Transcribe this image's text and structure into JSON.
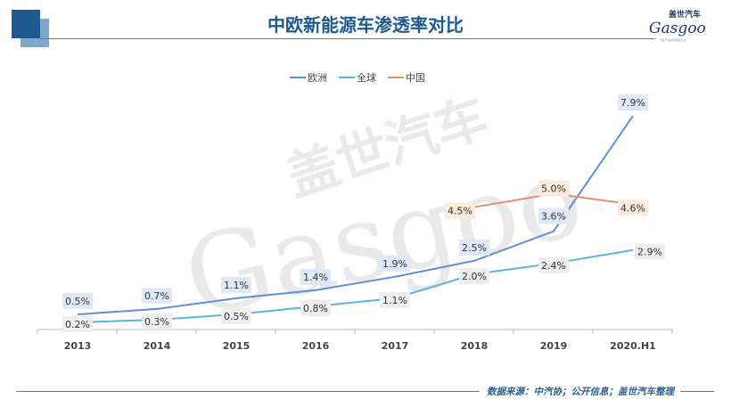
{
  "header": {
    "title": "中欧新能源车渗透率对比",
    "logo_cn": "盖世汽车",
    "logo_en": "Gasgoo",
    "logo_sub": "汽车产业资讯服务平台"
  },
  "watermark": {
    "cn": "盖世汽车",
    "en": "Gasgoo"
  },
  "footer": {
    "source": "数据来源：中汽协；公开信息；盖世汽车整理"
  },
  "chart_data": {
    "type": "line",
    "categories": [
      "2013",
      "2014",
      "2015",
      "2016",
      "2017",
      "2018",
      "2019",
      "2020.H1"
    ],
    "series": [
      {
        "name": "欧洲",
        "color": "#5b8fd9",
        "label_bg": "#dfe8f6",
        "values": [
          0.5,
          0.7,
          1.1,
          1.4,
          1.9,
          2.5,
          3.6,
          7.9
        ],
        "labels": [
          "0.5%",
          "0.7%",
          "1.1%",
          "1.4%",
          "1.9%",
          "2.5%",
          "3.6%",
          "7.9%"
        ]
      },
      {
        "name": "全球",
        "color": "#5ab4e0",
        "label_bg": "#eeeeee",
        "values": [
          0.2,
          0.3,
          0.5,
          0.8,
          1.1,
          2.0,
          2.4,
          2.9
        ],
        "labels": [
          "0.2%",
          "0.3%",
          "0.5%",
          "0.8%",
          "1.1%",
          "2.0%",
          "2.4%",
          "2.9%"
        ]
      },
      {
        "name": "中国",
        "color": "#ef8a6a",
        "label_bg": "#fcebd8",
        "values": [
          null,
          null,
          null,
          null,
          null,
          4.5,
          5.0,
          4.6
        ],
        "labels": [
          null,
          null,
          null,
          null,
          null,
          "4.5%",
          "5.0%",
          "4.6%"
        ]
      }
    ],
    "legend": "top-center",
    "grid": false,
    "ylim": [
      0,
      8
    ]
  }
}
